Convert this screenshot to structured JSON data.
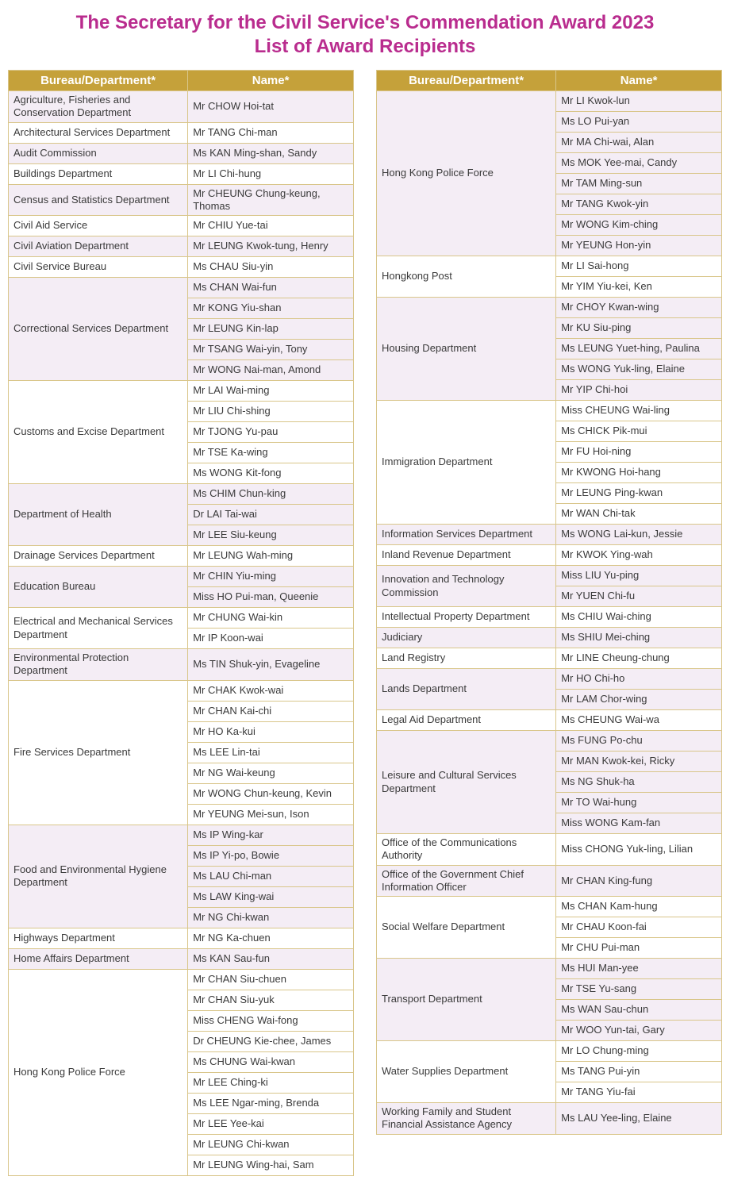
{
  "title_line1": "The Secretary for the Civil Service's Commendation Award 2023",
  "title_line2": "List of Award Recipients",
  "headers": {
    "dept": "Bureau/Department*",
    "name": "Name*"
  },
  "colors": {
    "title": "#b92c8e",
    "header_bg": "#c5a13a",
    "header_text": "#ffffff",
    "border": "#d9c68a",
    "shade": "#f4edf5",
    "plain": "#ffffff"
  },
  "left": [
    {
      "dept": "Agriculture, Fisheries and Conservation Department",
      "names": [
        "Mr CHOW Hoi-tat"
      ],
      "shade": true
    },
    {
      "dept": "Architectural Services Department",
      "names": [
        "Mr TANG Chi-man"
      ],
      "shade": false
    },
    {
      "dept": "Audit Commission",
      "names": [
        "Ms KAN Ming-shan, Sandy"
      ],
      "shade": true
    },
    {
      "dept": "Buildings Department",
      "names": [
        "Mr LI Chi-hung"
      ],
      "shade": false
    },
    {
      "dept": "Census and Statistics Department",
      "names": [
        "Mr CHEUNG Chung-keung, Thomas"
      ],
      "shade": true
    },
    {
      "dept": "Civil Aid Service",
      "names": [
        "Mr CHIU Yue-tai"
      ],
      "shade": false
    },
    {
      "dept": "Civil Aviation Department",
      "names": [
        "Mr LEUNG Kwok-tung, Henry"
      ],
      "shade": true
    },
    {
      "dept": "Civil Service Bureau",
      "names": [
        "Ms CHAU Siu-yin"
      ],
      "shade": false
    },
    {
      "dept": "Correctional Services Department",
      "names": [
        "Ms CHAN Wai-fun",
        "Mr KONG Yiu-shan",
        "Mr LEUNG Kin-lap",
        "Mr TSANG Wai-yin, Tony",
        "Mr WONG Nai-man, Amond"
      ],
      "shade": true
    },
    {
      "dept": "Customs and Excise Department",
      "names": [
        "Mr LAI Wai-ming",
        "Mr LIU Chi-shing",
        "Mr TJONG Yu-pau",
        "Mr TSE Ka-wing",
        "Ms WONG Kit-fong"
      ],
      "shade": false
    },
    {
      "dept": "Department of Health",
      "names": [
        "Ms CHIM Chun-king",
        "Dr LAI Tai-wai",
        "Mr LEE Siu-keung"
      ],
      "shade": true
    },
    {
      "dept": "Drainage Services Department",
      "names": [
        "Mr LEUNG Wah-ming"
      ],
      "shade": false
    },
    {
      "dept": "Education Bureau",
      "names": [
        "Mr CHIN Yiu-ming",
        "Miss HO Pui-man, Queenie"
      ],
      "shade": true
    },
    {
      "dept": "Electrical and Mechanical Services Department",
      "names": [
        "Mr CHUNG Wai-kin",
        "Mr IP Koon-wai"
      ],
      "shade": false
    },
    {
      "dept": "Environmental Protection Department",
      "names": [
        "Ms TIN Shuk-yin, Evageline"
      ],
      "shade": true
    },
    {
      "dept": "Fire Services Department",
      "names": [
        "Mr CHAK Kwok-wai",
        "Mr CHAN Kai-chi",
        "Mr HO Ka-kui",
        "Ms LEE Lin-tai",
        "Mr NG Wai-keung",
        "Mr WONG Chun-keung, Kevin",
        "Mr YEUNG Mei-sun, Ison"
      ],
      "shade": false
    },
    {
      "dept": "Food and Environmental Hygiene Department",
      "names": [
        "Ms IP Wing-kar",
        "Ms IP Yi-po, Bowie",
        "Ms LAU Chi-man",
        "Ms LAW King-wai",
        "Mr NG Chi-kwan"
      ],
      "shade": true
    },
    {
      "dept": "Highways Department",
      "names": [
        "Mr NG Ka-chuen"
      ],
      "shade": false
    },
    {
      "dept": "Home Affairs Department",
      "names": [
        "Ms KAN Sau-fun"
      ],
      "shade": true
    },
    {
      "dept": "Hong Kong Police Force",
      "names": [
        "Mr CHAN Siu-chuen",
        "Mr CHAN Siu-yuk",
        "Miss CHENG Wai-fong",
        "Dr CHEUNG Kie-chee, James",
        "Ms CHUNG Wai-kwan",
        "Mr LEE Ching-ki",
        "Ms LEE Ngar-ming, Brenda",
        "Mr LEE Yee-kai",
        "Mr LEUNG Chi-kwan",
        "Mr LEUNG Wing-hai, Sam"
      ],
      "shade": false
    }
  ],
  "right": [
    {
      "dept": "Hong Kong Police Force",
      "names": [
        "Mr LI Kwok-lun",
        "Ms LO Pui-yan",
        "Mr MA Chi-wai, Alan",
        "Ms MOK Yee-mai, Candy",
        "Mr TAM Ming-sun",
        "Mr TANG Kwok-yin",
        "Mr WONG Kim-ching",
        "Mr YEUNG Hon-yin"
      ],
      "shade": true
    },
    {
      "dept": "Hongkong Post",
      "names": [
        "Mr LI Sai-hong",
        "Mr YIM Yiu-kei, Ken"
      ],
      "shade": false
    },
    {
      "dept": "Housing Department",
      "names": [
        "Mr CHOY Kwan-wing",
        "Mr KU Siu-ping",
        "Ms LEUNG Yuet-hing, Paulina",
        "Ms WONG Yuk-ling, Elaine",
        "Mr YIP Chi-hoi"
      ],
      "shade": true
    },
    {
      "dept": "Immigration Department",
      "names": [
        "Miss CHEUNG Wai-ling",
        "Ms CHICK Pik-mui",
        "Mr FU Hoi-ning",
        "Mr KWONG Hoi-hang",
        "Mr LEUNG Ping-kwan",
        "Mr WAN Chi-tak"
      ],
      "shade": false
    },
    {
      "dept": "Information Services Department",
      "names": [
        "Ms WONG Lai-kun, Jessie"
      ],
      "shade": true
    },
    {
      "dept": "Inland Revenue Department",
      "names": [
        "Mr KWOK Ying-wah"
      ],
      "shade": false
    },
    {
      "dept": "Innovation and Technology Commission",
      "names": [
        "Miss LIU Yu-ping",
        "Mr YUEN Chi-fu"
      ],
      "shade": true
    },
    {
      "dept": "Intellectual Property Department",
      "names": [
        "Ms CHIU Wai-ching"
      ],
      "shade": false
    },
    {
      "dept": "Judiciary",
      "names": [
        "Ms SHIU Mei-ching"
      ],
      "shade": true
    },
    {
      "dept": "Land Registry",
      "names": [
        "Mr LINE Cheung-chung"
      ],
      "shade": false
    },
    {
      "dept": "Lands Department",
      "names": [
        "Mr HO Chi-ho",
        "Mr LAM Chor-wing"
      ],
      "shade": true
    },
    {
      "dept": "Legal Aid Department",
      "names": [
        "Ms CHEUNG Wai-wa"
      ],
      "shade": false
    },
    {
      "dept": "Leisure and Cultural Services Department",
      "names": [
        "Ms FUNG Po-chu",
        "Mr MAN Kwok-kei, Ricky",
        "Ms NG Shuk-ha",
        "Mr TO Wai-hung",
        "Miss WONG Kam-fan"
      ],
      "shade": true
    },
    {
      "dept": "Office of the Communications Authority",
      "names": [
        "Miss CHONG Yuk-ling, Lilian"
      ],
      "shade": false
    },
    {
      "dept": "Office of the Government Chief Information Officer",
      "names": [
        "Mr CHAN King-fung"
      ],
      "shade": true
    },
    {
      "dept": "Social Welfare Department",
      "names": [
        "Ms CHAN Kam-hung",
        "Mr CHAU Koon-fai",
        "Mr CHU Pui-man"
      ],
      "shade": false
    },
    {
      "dept": "Transport Department",
      "names": [
        "Ms HUI Man-yee",
        "Mr TSE Yu-sang",
        "Ms WAN Sau-chun",
        "Mr WOO Yun-tai, Gary"
      ],
      "shade": true
    },
    {
      "dept": "Water Supplies Department",
      "names": [
        "Mr LO Chung-ming",
        "Ms TANG Pui-yin",
        "Mr TANG Yiu-fai"
      ],
      "shade": false
    },
    {
      "dept": "Working Family and Student Financial Assistance Agency",
      "names": [
        "Ms LAU Yee-ling, Elaine"
      ],
      "shade": true
    }
  ]
}
